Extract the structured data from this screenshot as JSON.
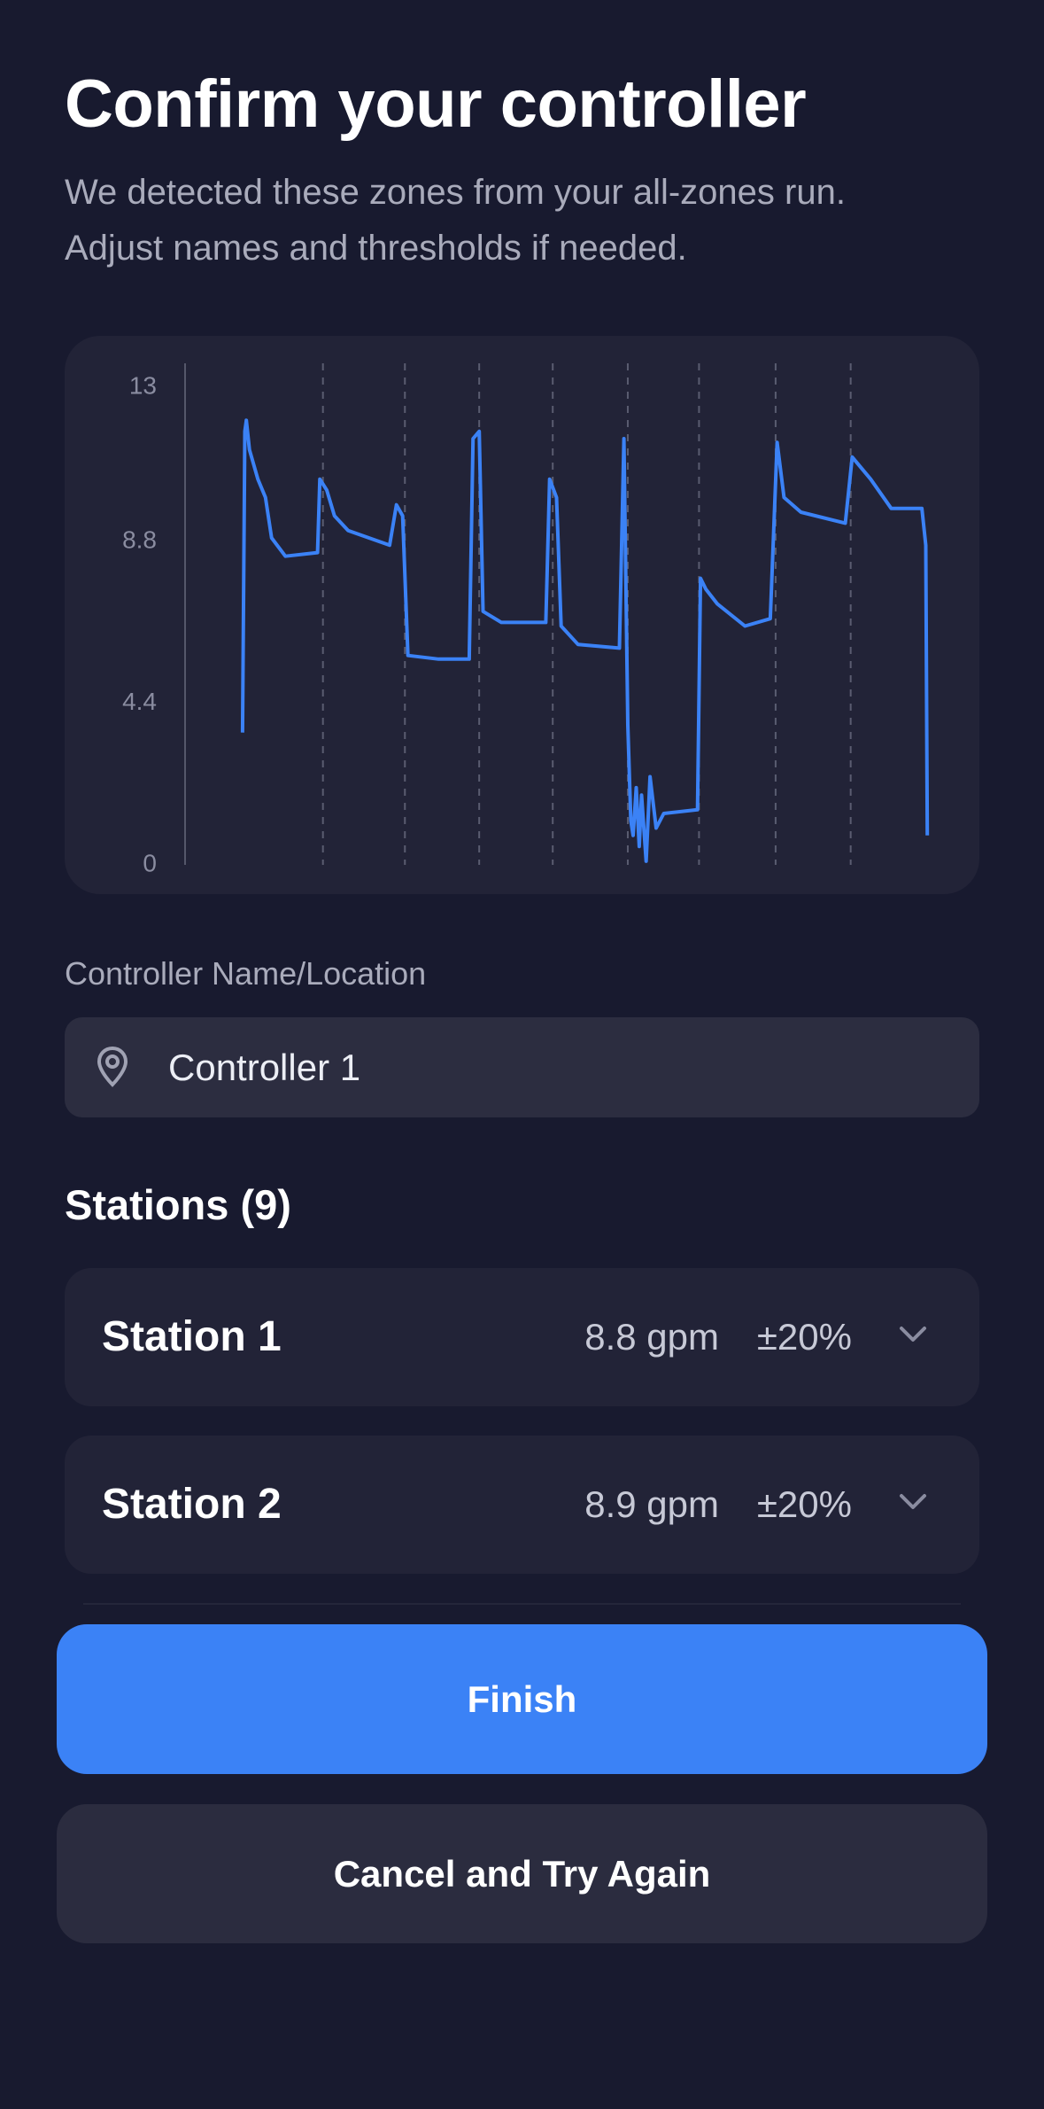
{
  "header": {
    "title": "Confirm your controller",
    "subtitle_lines": [
      "We detected these zones from your all-zones run.",
      "Adjust names and thresholds if needed."
    ]
  },
  "chart_data": {
    "type": "line",
    "color": "#3b82f6",
    "xlim": [
      0,
      100
    ],
    "x": [
      7.5,
      7.8,
      8.0,
      8.4,
      9.5,
      10.5,
      11.3,
      13.1,
      17.3,
      17.6,
      18.5,
      19.5,
      21.3,
      26.7,
      27.6,
      28.4,
      29.1,
      33.1,
      37.1,
      37.6,
      38.4,
      38.9,
      41.3,
      47.1,
      47.6,
      48.5,
      49.1,
      51.3,
      56.7,
      57.3,
      57.8,
      58.2,
      58.5,
      58.9,
      59.3,
      59.6,
      60.2,
      60.7,
      61.5,
      62.5,
      66.9,
      67.3,
      68.0,
      69.5,
      73.1,
      76.4,
      77.3,
      78.2,
      80.4,
      86.2,
      87.1,
      89.5,
      92.2,
      96.2,
      96.7,
      96.9
    ],
    "values": [
      3.6,
      11.8,
      12.1,
      11.3,
      10.5,
      10.0,
      8.9,
      8.4,
      8.5,
      10.5,
      10.2,
      9.5,
      9.1,
      8.7,
      9.8,
      9.5,
      5.7,
      5.6,
      5.6,
      11.6,
      11.8,
      6.9,
      6.6,
      6.6,
      10.5,
      10.0,
      6.5,
      6.0,
      5.9,
      11.6,
      3.8,
      1.2,
      0.8,
      2.1,
      0.5,
      1.9,
      0.1,
      2.4,
      1.0,
      1.4,
      1.5,
      7.8,
      7.5,
      7.1,
      6.5,
      6.7,
      11.5,
      10.0,
      9.6,
      9.3,
      11.1,
      10.5,
      9.7,
      9.7,
      8.7,
      0.8
    ],
    "ylim": [
      0,
      13
    ],
    "yticks": [
      0,
      4.4,
      8.8,
      13
    ],
    "vlines": [
      18,
      28.7,
      38.4,
      48,
      57.8,
      67.1,
      77.1,
      86.9
    ]
  },
  "controller": {
    "label": "Controller Name/Location",
    "value": "Controller 1"
  },
  "stations": {
    "heading": "Stations (9)",
    "items": [
      {
        "name": "Station 1",
        "flow": "8.8 gpm",
        "tolerance": "±20%"
      },
      {
        "name": "Station 2",
        "flow": "8.9 gpm",
        "tolerance": "±20%"
      }
    ]
  },
  "buttons": {
    "primary": "Finish",
    "secondary": "Cancel and Try Again"
  }
}
